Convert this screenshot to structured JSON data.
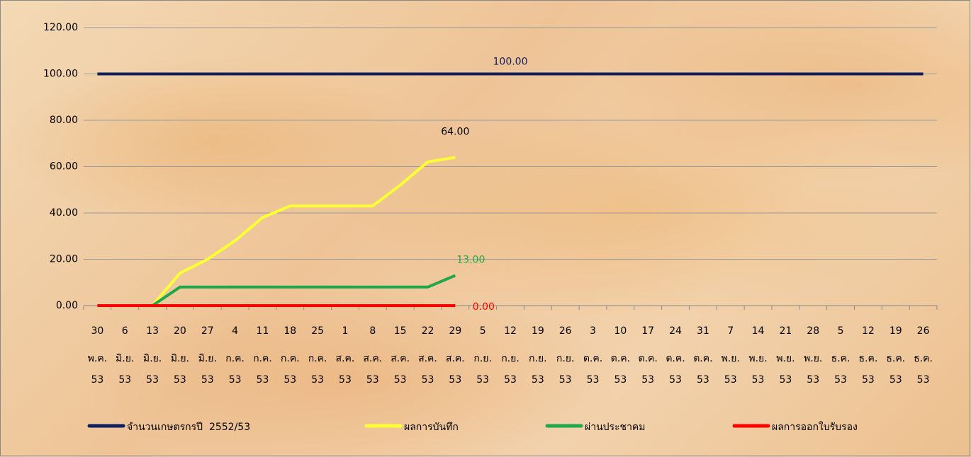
{
  "chart_data": {
    "type": "line",
    "categories": [
      [
        "30",
        "พ.ค.",
        "53"
      ],
      [
        "6",
        "มิ.ย.",
        "53"
      ],
      [
        "13",
        "มิ.ย.",
        "53"
      ],
      [
        "20",
        "มิ.ย.",
        "53"
      ],
      [
        "27",
        "มิ.ย.",
        "53"
      ],
      [
        "4",
        "ก.ค.",
        "53"
      ],
      [
        "11",
        "ก.ค.",
        "53"
      ],
      [
        "18",
        "ก.ค.",
        "53"
      ],
      [
        "25",
        "ก.ค.",
        "53"
      ],
      [
        "1",
        "ส.ค.",
        "53"
      ],
      [
        "8",
        "ส.ค.",
        "53"
      ],
      [
        "15",
        "ส.ค.",
        "53"
      ],
      [
        "22",
        "ส.ค.",
        "53"
      ],
      [
        "29",
        "ส.ค.",
        "53"
      ],
      [
        "5",
        "ก.ย.",
        "53"
      ],
      [
        "12",
        "ก.ย.",
        "53"
      ],
      [
        "19",
        "ก.ย.",
        "53"
      ],
      [
        "26",
        "ก.ย.",
        "53"
      ],
      [
        "3",
        "ต.ค.",
        "53"
      ],
      [
        "10",
        "ต.ค.",
        "53"
      ],
      [
        "17",
        "ต.ค.",
        "53"
      ],
      [
        "24",
        "ต.ค.",
        "53"
      ],
      [
        "31",
        "ต.ค.",
        "53"
      ],
      [
        "7",
        "พ.ย.",
        "53"
      ],
      [
        "14",
        "พ.ย.",
        "53"
      ],
      [
        "21",
        "พ.ย.",
        "53"
      ],
      [
        "28",
        "พ.ย.",
        "53"
      ],
      [
        "5",
        "ธ.ค.",
        "53"
      ],
      [
        "12",
        "ธ.ค.",
        "53"
      ],
      [
        "19",
        "ธ.ค.",
        "53"
      ],
      [
        "26",
        "ธ.ค.",
        "53"
      ]
    ],
    "series": [
      {
        "name": "จำนวนเกษตรกรปี  2552/53",
        "color": "#0f1f5e",
        "values": [
          100,
          100,
          100,
          100,
          100,
          100,
          100,
          100,
          100,
          100,
          100,
          100,
          100,
          100,
          100,
          100,
          100,
          100,
          100,
          100,
          100,
          100,
          100,
          100,
          100,
          100,
          100,
          100,
          100,
          100,
          100
        ],
        "value_labels": [
          null,
          null,
          null,
          null,
          null,
          null,
          null,
          null,
          null,
          null,
          null,
          null,
          null,
          null,
          null,
          "100.00",
          null,
          null,
          null,
          null,
          null,
          null,
          null,
          null,
          null,
          null,
          null,
          null,
          null,
          null,
          null
        ]
      },
      {
        "name": "ผลการบันทึก",
        "color": "#ffff33",
        "values": [
          0,
          0,
          0,
          14,
          20,
          28,
          38,
          43,
          43,
          43,
          43,
          52,
          62,
          64,
          null,
          null,
          null,
          null,
          null,
          null,
          null,
          null,
          null,
          null,
          null,
          null,
          null,
          null,
          null,
          null,
          null
        ],
        "value_labels": [
          null,
          null,
          null,
          null,
          null,
          null,
          null,
          null,
          null,
          null,
          null,
          null,
          null,
          "64.00",
          null,
          null,
          null,
          null,
          null,
          null,
          null,
          null,
          null,
          null,
          null,
          null,
          null,
          null,
          null,
          null,
          null
        ]
      },
      {
        "name": "ผ่านประชาคม",
        "color": "#1fa84a",
        "values": [
          0,
          0,
          0,
          8,
          8,
          8,
          8,
          8,
          8,
          8,
          8,
          8,
          8,
          13,
          null,
          null,
          null,
          null,
          null,
          null,
          null,
          null,
          null,
          null,
          null,
          null,
          null,
          null,
          null,
          null,
          null
        ],
        "value_labels": [
          null,
          null,
          null,
          null,
          null,
          null,
          null,
          null,
          null,
          null,
          null,
          null,
          null,
          "13.00",
          null,
          null,
          null,
          null,
          null,
          null,
          null,
          null,
          null,
          null,
          null,
          null,
          null,
          null,
          null,
          null,
          null
        ]
      },
      {
        "name": "ผลการออกใบรับรอง",
        "color": "#ff0000",
        "values": [
          0,
          0,
          0,
          0,
          0,
          0,
          0,
          0,
          0,
          0,
          0,
          0,
          0,
          0,
          null,
          null,
          null,
          null,
          null,
          null,
          null,
          null,
          null,
          null,
          null,
          null,
          null,
          null,
          null,
          null,
          null
        ],
        "value_labels": [
          null,
          null,
          null,
          null,
          null,
          null,
          null,
          null,
          null,
          null,
          null,
          null,
          null,
          "0.00",
          null,
          null,
          null,
          null,
          null,
          null,
          null,
          null,
          null,
          null,
          null,
          null,
          null,
          null,
          null,
          null,
          null
        ]
      }
    ],
    "ylim": [
      0,
      120
    ],
    "yticks": [
      {
        "value": 0,
        "label": "0.00"
      },
      {
        "value": 20,
        "label": "20.00"
      },
      {
        "value": 40,
        "label": "40.00"
      },
      {
        "value": 60,
        "label": "60.00"
      },
      {
        "value": 80,
        "label": "80.00"
      },
      {
        "value": 100,
        "label": "100.00"
      },
      {
        "value": 120,
        "label": "120.00"
      }
    ],
    "grid": true,
    "legend": "bottom"
  }
}
